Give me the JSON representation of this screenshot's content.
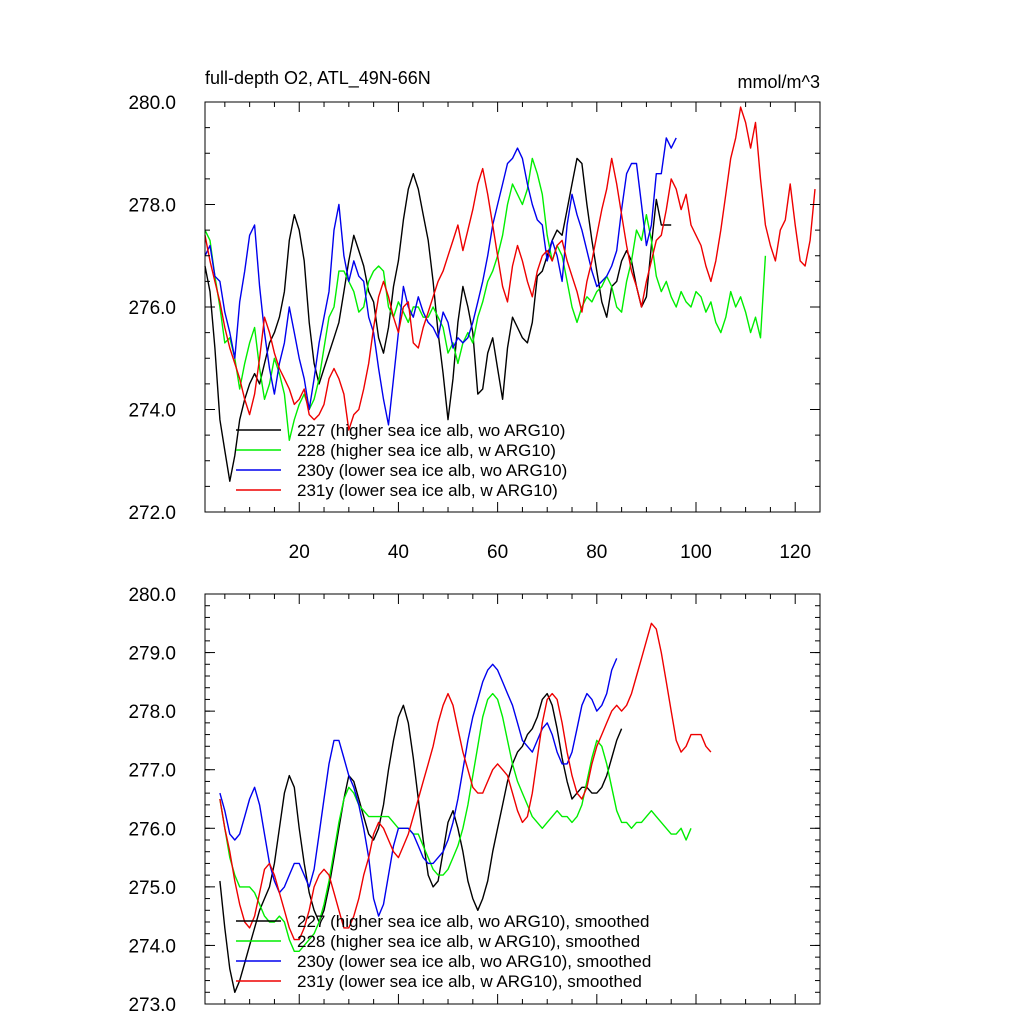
{
  "chart_data": [
    {
      "type": "line",
      "title": "full-depth O2, ATL_49N-66N",
      "units": "mmol/m^3",
      "xlabel": "",
      "ylabel": "",
      "xlim": [
        1,
        125
      ],
      "ylim": [
        272.0,
        280.0
      ],
      "y_ticks": [
        "272.0",
        "274.0",
        "276.0",
        "278.0",
        "280.0"
      ],
      "x_ticks": [
        "20",
        "40",
        "60",
        "80",
        "100",
        "120"
      ],
      "legend_position": "bottom-left",
      "series": [
        {
          "name": "227 (higher sea ice alb, wo ARG10)",
          "color": "#000000",
          "x_start": 1,
          "values": [
            276.8,
            276.3,
            275.2,
            273.8,
            273.2,
            272.6,
            273.1,
            273.8,
            274.2,
            274.5,
            274.7,
            274.5,
            274.9,
            275.3,
            275.5,
            275.8,
            276.3,
            277.3,
            277.8,
            277.5,
            276.9,
            275.7,
            274.9,
            274.5,
            274.8,
            275.1,
            275.4,
            275.7,
            276.3,
            276.9,
            277.4,
            277.1,
            276.8,
            276.3,
            276.1,
            275.4,
            275.1,
            275.6,
            276.4,
            276.9,
            277.7,
            278.3,
            278.6,
            278.3,
            277.8,
            277.3,
            276.5,
            275.5,
            274.7,
            273.8,
            274.6,
            275.7,
            276.4,
            276.0,
            275.5,
            274.3,
            274.4,
            275.1,
            275.4,
            274.8,
            274.2,
            275.2,
            275.8,
            275.6,
            275.4,
            275.3,
            275.7,
            276.6,
            276.7,
            277.0,
            277.3,
            277.5,
            277.4,
            277.9,
            278.4,
            278.9,
            278.8,
            278.0,
            277.3,
            276.7,
            276.1,
            275.8,
            276.4,
            276.5,
            276.9,
            277.1,
            276.9,
            276.4,
            276.0,
            276.2,
            277.2,
            278.1,
            277.6,
            277.6,
            277.6
          ]
        },
        {
          "name": "228 (higher sea ice alb, w ARG10)",
          "color": "#00ee00",
          "x_start": 1,
          "values": [
            277.5,
            277.3,
            276.6,
            276.0,
            275.3,
            275.4,
            275.0,
            274.4,
            274.9,
            275.3,
            275.6,
            274.8,
            274.2,
            274.5,
            275.0,
            274.7,
            274.3,
            273.4,
            273.8,
            274.1,
            274.3,
            274.0,
            274.2,
            274.6,
            275.2,
            275.8,
            276.0,
            276.7,
            276.7,
            276.5,
            276.3,
            275.9,
            276.0,
            276.5,
            276.7,
            276.8,
            276.7,
            276.0,
            275.8,
            276.1,
            275.9,
            275.7,
            276.0,
            276.0,
            275.8,
            275.8,
            276.0,
            275.8,
            275.6,
            275.1,
            275.3,
            274.9,
            275.3,
            275.5,
            275.3,
            275.8,
            276.1,
            276.5,
            276.7,
            277.0,
            277.4,
            278.0,
            278.4,
            278.2,
            278.0,
            278.3,
            278.9,
            278.6,
            278.2,
            277.4,
            276.9,
            277.2,
            277.0,
            276.5,
            276.0,
            275.7,
            276.0,
            276.2,
            276.1,
            276.3,
            276.4,
            276.6,
            276.4,
            276.0,
            275.9,
            276.5,
            276.9,
            277.5,
            277.3,
            277.8,
            277.3,
            276.6,
            276.3,
            276.5,
            276.2,
            276.0,
            276.3,
            276.1,
            276.0,
            276.3,
            276.2,
            275.9,
            276.1,
            275.7,
            275.5,
            275.8,
            276.3,
            276.0,
            276.2,
            275.9,
            275.5,
            275.8,
            275.4,
            277.0
          ]
        },
        {
          "name": "230y (lower sea ice alb, wo ARG10)",
          "color": "#0000ee",
          "x_start": 1,
          "values": [
            277.0,
            277.2,
            276.6,
            276.5,
            275.9,
            275.5,
            275.0,
            276.1,
            276.7,
            277.4,
            277.6,
            276.4,
            275.5,
            274.8,
            274.3,
            274.9,
            275.3,
            276.0,
            275.5,
            275.0,
            274.6,
            274.0,
            274.6,
            275.3,
            275.8,
            276.3,
            277.5,
            278.0,
            277.0,
            276.5,
            276.9,
            276.6,
            276.5,
            275.8,
            275.5,
            274.8,
            274.2,
            273.7,
            274.6,
            275.5,
            276.4,
            276.0,
            275.8,
            276.2,
            275.9,
            275.7,
            275.6,
            275.4,
            275.9,
            275.7,
            275.2,
            275.4,
            275.3,
            275.4,
            275.7,
            276.1,
            276.5,
            277.0,
            277.6,
            278.0,
            278.4,
            278.8,
            278.9,
            279.1,
            278.9,
            278.4,
            278.0,
            277.7,
            277.6,
            276.9,
            277.3,
            277.0,
            276.5,
            277.6,
            278.2,
            277.8,
            277.5,
            277.1,
            276.7,
            276.4,
            276.5,
            276.6,
            276.8,
            277.1,
            277.9,
            278.6,
            278.8,
            278.8,
            278.0,
            277.2,
            277.6,
            278.6,
            278.6,
            279.3,
            279.1,
            279.3
          ]
        },
        {
          "name": "231y (lower sea ice alb, w ARG10)",
          "color": "#ee0000",
          "x_start": 1,
          "values": [
            277.4,
            276.9,
            276.5,
            276.1,
            275.6,
            275.2,
            274.9,
            274.6,
            274.2,
            273.9,
            274.3,
            275.0,
            275.8,
            275.5,
            275.1,
            274.8,
            274.6,
            274.4,
            274.1,
            274.2,
            274.4,
            273.9,
            273.8,
            273.9,
            274.1,
            274.6,
            274.8,
            274.6,
            274.3,
            273.6,
            273.9,
            274.0,
            274.4,
            274.9,
            275.6,
            276.2,
            276.5,
            276.2,
            275.8,
            275.5,
            276.0,
            276.1,
            275.3,
            275.2,
            275.6,
            275.9,
            276.2,
            276.5,
            276.7,
            277.0,
            277.3,
            277.6,
            277.1,
            277.5,
            277.9,
            278.4,
            278.7,
            278.2,
            277.6,
            277.0,
            276.4,
            276.1,
            276.8,
            277.2,
            276.9,
            276.5,
            276.2,
            276.7,
            277.0,
            277.1,
            276.9,
            277.2,
            277.3,
            276.9,
            276.6,
            276.3,
            275.9,
            276.5,
            276.9,
            277.4,
            277.9,
            278.3,
            278.9,
            278.4,
            277.8,
            277.2,
            276.7,
            276.4,
            276.0,
            276.5,
            276.9,
            277.3,
            277.4,
            277.9,
            278.5,
            278.3,
            277.9,
            278.2,
            277.6,
            277.4,
            277.2,
            276.8,
            276.5,
            276.9,
            277.5,
            278.2,
            278.9,
            279.3,
            279.9,
            279.6,
            279.1,
            279.6,
            278.5,
            277.6,
            277.2,
            276.9,
            277.5,
            277.7,
            278.4,
            277.6,
            276.9,
            276.8,
            277.3,
            278.3
          ]
        }
      ]
    },
    {
      "type": "line",
      "title": "",
      "xlabel": "",
      "ylabel": "",
      "xlim": [
        1,
        125
      ],
      "ylim": [
        273.0,
        280.0
      ],
      "y_ticks": [
        "273.0",
        "274.0",
        "275.0",
        "276.0",
        "277.0",
        "278.0",
        "279.0",
        "280.0"
      ],
      "legend_position": "bottom-left",
      "series": [
        {
          "name": "227 (higher sea ice alb, wo ARG10), smoothed",
          "color": "#000000",
          "x_start": 4,
          "values": [
            275.1,
            274.3,
            273.6,
            273.2,
            273.4,
            273.7,
            274.0,
            274.3,
            274.6,
            274.8,
            275.0,
            275.4,
            276.0,
            276.6,
            276.9,
            276.7,
            276.0,
            275.4,
            274.9,
            274.6,
            274.4,
            274.6,
            275.0,
            275.5,
            276.0,
            276.5,
            276.9,
            276.8,
            276.5,
            276.2,
            275.9,
            275.8,
            276.0,
            276.4,
            277.0,
            277.5,
            277.9,
            278.1,
            277.8,
            277.2,
            276.5,
            275.8,
            275.2,
            275.0,
            275.1,
            275.6,
            276.1,
            276.3,
            276.0,
            275.6,
            275.1,
            274.8,
            274.6,
            274.8,
            275.1,
            275.6,
            276.0,
            276.4,
            276.8,
            277.1,
            277.3,
            277.4,
            277.6,
            277.7,
            277.9,
            278.2,
            278.3,
            278.1,
            277.7,
            277.2,
            276.8,
            276.5,
            276.6,
            276.7,
            276.7,
            276.6,
            276.6,
            276.7,
            276.9,
            277.2,
            277.5,
            277.7
          ]
        },
        {
          "name": "228 (higher sea ice alb, w ARG10), smoothed",
          "color": "#00ee00",
          "x_start": 4,
          "values": [
            276.5,
            276.0,
            275.5,
            275.2,
            275.0,
            275.0,
            275.0,
            274.9,
            274.7,
            274.5,
            274.4,
            274.4,
            274.5,
            274.4,
            274.1,
            273.9,
            273.9,
            274.0,
            274.1,
            274.2,
            274.4,
            274.7,
            275.1,
            275.6,
            276.1,
            276.5,
            276.7,
            276.6,
            276.4,
            276.3,
            276.2,
            276.2,
            276.2,
            276.2,
            276.2,
            276.1,
            276.0,
            276.0,
            276.0,
            275.9,
            275.9,
            275.7,
            275.5,
            275.3,
            275.2,
            275.2,
            275.3,
            275.5,
            275.7,
            276.0,
            276.4,
            276.9,
            277.4,
            277.9,
            278.2,
            278.3,
            278.2,
            277.9,
            277.5,
            277.1,
            276.8,
            276.6,
            276.4,
            276.2,
            276.1,
            276.0,
            276.1,
            276.2,
            276.3,
            276.2,
            276.2,
            276.1,
            276.2,
            276.4,
            276.8,
            277.2,
            277.5,
            277.4,
            277.1,
            276.7,
            276.3,
            276.1,
            276.1,
            276.0,
            276.1,
            276.1,
            276.2,
            276.3,
            276.2,
            276.1,
            276.0,
            275.9,
            275.9,
            276.0,
            275.8,
            276.0
          ]
        },
        {
          "name": "230y (lower sea ice alb, wo ARG10), smoothed",
          "color": "#0000ee",
          "x_start": 4,
          "values": [
            276.6,
            276.3,
            275.9,
            275.8,
            275.9,
            276.2,
            276.5,
            276.7,
            276.4,
            275.9,
            275.4,
            275.1,
            274.9,
            275.0,
            275.2,
            275.4,
            275.4,
            275.2,
            275.0,
            275.3,
            275.9,
            276.5,
            277.1,
            277.5,
            277.5,
            277.2,
            276.9,
            276.7,
            276.4,
            276.0,
            275.5,
            274.8,
            274.5,
            274.7,
            275.2,
            275.7,
            276.0,
            276.0,
            276.0,
            275.9,
            275.7,
            275.5,
            275.4,
            275.4,
            275.5,
            275.6,
            275.8,
            276.1,
            276.5,
            277.0,
            277.5,
            277.9,
            278.2,
            278.5,
            278.7,
            278.8,
            278.7,
            278.5,
            278.3,
            278.1,
            277.8,
            277.5,
            277.4,
            277.3,
            277.5,
            277.7,
            277.8,
            277.6,
            277.3,
            277.1,
            277.1,
            277.3,
            277.7,
            278.1,
            278.3,
            278.2,
            278.0,
            278.1,
            278.3,
            278.7,
            278.9
          ]
        },
        {
          "name": "231y (lower sea ice alb, w ARG10), smoothed",
          "color": "#ee0000",
          "x_start": 4,
          "values": [
            276.5,
            276.0,
            275.6,
            275.1,
            274.7,
            274.4,
            274.3,
            274.5,
            274.9,
            275.3,
            275.4,
            275.2,
            274.9,
            274.6,
            274.3,
            274.1,
            274.1,
            274.3,
            274.6,
            275.0,
            275.2,
            275.3,
            275.2,
            274.9,
            274.6,
            274.3,
            274.3,
            274.5,
            274.8,
            275.2,
            275.5,
            275.9,
            276.1,
            276.0,
            275.8,
            275.6,
            275.5,
            275.7,
            275.9,
            276.2,
            276.5,
            276.8,
            277.1,
            277.4,
            277.8,
            278.1,
            278.3,
            278.1,
            277.7,
            277.3,
            277.0,
            276.7,
            276.6,
            276.6,
            276.8,
            277.0,
            277.1,
            277.0,
            276.9,
            276.6,
            276.3,
            276.1,
            276.2,
            276.6,
            277.2,
            277.8,
            278.2,
            278.3,
            278.2,
            277.8,
            277.3,
            276.9,
            276.6,
            276.5,
            276.7,
            277.1,
            277.4,
            277.6,
            277.8,
            278.0,
            278.1,
            278.0,
            278.1,
            278.3,
            278.6,
            278.9,
            279.2,
            279.5,
            279.4,
            279.0,
            278.5,
            278.0,
            277.5,
            277.3,
            277.4,
            277.6,
            277.6,
            277.6,
            277.4,
            277.3
          ]
        }
      ]
    }
  ]
}
